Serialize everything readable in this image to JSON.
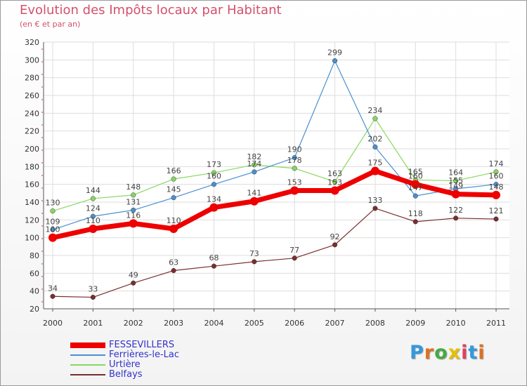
{
  "header": {
    "title": "Evolution des Impôts locaux par Habitant",
    "subtitle": "(en € et par an)"
  },
  "logo": {
    "text": "Proxiti",
    "letter_colors": [
      "#3399dd",
      "#e07020",
      "#44aa44",
      "#e8c000",
      "#e04060",
      "#3399dd",
      "#e07020"
    ]
  },
  "chart_data": {
    "type": "line",
    "title": "Evolution des Impôts locaux par Habitant",
    "subtitle": "(en € et par an)",
    "xlabel": "",
    "ylabel": "",
    "x": [
      "2000",
      "2001",
      "2002",
      "2003",
      "2004",
      "2005",
      "2006",
      "2007",
      "2008",
      "2009",
      "2010",
      "2011"
    ],
    "ylim": [
      20,
      320
    ],
    "yticks": [
      20,
      40,
      60,
      80,
      100,
      120,
      140,
      160,
      180,
      200,
      220,
      240,
      260,
      280,
      300,
      320
    ],
    "grid": true,
    "legend_position": "bottom-left",
    "series": [
      {
        "name": "FESSEVILLERS",
        "color": "#ee0000",
        "values": [
          100,
          110,
          116,
          110,
          134,
          141,
          153,
          153,
          175,
          160,
          149,
          148
        ]
      },
      {
        "name": "Ferrières-le-Lac",
        "color": "#4a90d0",
        "values": [
          109,
          124,
          131,
          145,
          160,
          174,
          190,
          299,
          202,
          147,
          155,
          160
        ]
      },
      {
        "name": "Urtière",
        "color": "#88d860",
        "values": [
          130,
          144,
          148,
          166,
          173,
          182,
          178,
          163,
          234,
          165,
          164,
          174
        ]
      },
      {
        "name": "Belfays",
        "color": "#7a2e2e",
        "values": [
          34,
          33,
          49,
          63,
          68,
          73,
          77,
          92,
          133,
          118,
          122,
          121
        ]
      }
    ]
  }
}
